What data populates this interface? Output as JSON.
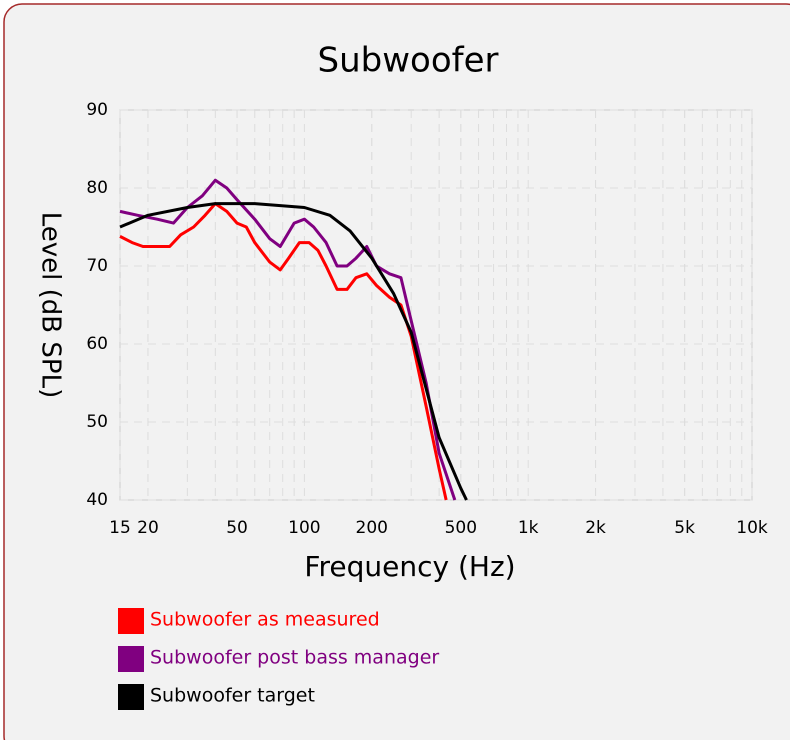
{
  "chart_data": {
    "type": "line",
    "title": "Subwoofer",
    "x_label": "Frequency (Hz)",
    "y_label": "Level (dB SPL)",
    "xscale": "log",
    "xlim": [
      15,
      10000
    ],
    "xticks": [
      15,
      20,
      50,
      100,
      200,
      500,
      {
        "value": 1000,
        "label": "1k"
      },
      {
        "value": 2000,
        "label": "2k"
      },
      {
        "value": 5000,
        "label": "5k"
      },
      {
        "value": 10000,
        "label": "10k"
      }
    ],
    "ylim": [
      40,
      90
    ],
    "yticks": [
      40,
      50,
      60,
      70,
      80,
      90
    ],
    "grid": true,
    "series": [
      {
        "name": "Subwoofer as measured",
        "color": "#ff0000",
        "x": [
          15,
          17,
          19,
          22,
          25,
          28,
          32,
          36,
          40,
          45,
          50,
          55,
          60,
          70,
          78,
          85,
          95,
          105,
          115,
          125,
          140,
          155,
          170,
          190,
          210,
          240,
          270,
          300,
          350,
          400,
          430
        ],
        "values": [
          73.8,
          73,
          72.5,
          72.5,
          72.5,
          74,
          75,
          76.5,
          78,
          77,
          75.5,
          75,
          73,
          70.5,
          69.5,
          71,
          73,
          73,
          72,
          70,
          67,
          67,
          68.5,
          69,
          67.5,
          66,
          65,
          61,
          52,
          44,
          40
        ]
      },
      {
        "name": "Subwoofer post bass manager",
        "color": "#800080",
        "x": [
          15,
          18,
          22,
          26,
          30,
          35,
          40,
          45,
          50,
          60,
          70,
          78,
          90,
          100,
          110,
          125,
          140,
          155,
          170,
          190,
          210,
          240,
          270,
          300,
          350,
          400,
          470
        ],
        "values": [
          77,
          76.5,
          76,
          75.5,
          77.5,
          79,
          81,
          80,
          78.5,
          76,
          73.5,
          72.5,
          75.5,
          76,
          75,
          73,
          70,
          70,
          71,
          72.5,
          70,
          69,
          68.5,
          63,
          55,
          46,
          40
        ]
      },
      {
        "name": "Subwoofer target",
        "color": "#000000",
        "x": [
          15,
          20,
          30,
          40,
          60,
          100,
          130,
          160,
          200,
          250,
          300,
          400,
          500,
          530
        ],
        "values": [
          75,
          76.5,
          77.5,
          78,
          78,
          77.5,
          76.5,
          74.5,
          71,
          66.5,
          61.5,
          48,
          41.5,
          40
        ]
      }
    ]
  }
}
